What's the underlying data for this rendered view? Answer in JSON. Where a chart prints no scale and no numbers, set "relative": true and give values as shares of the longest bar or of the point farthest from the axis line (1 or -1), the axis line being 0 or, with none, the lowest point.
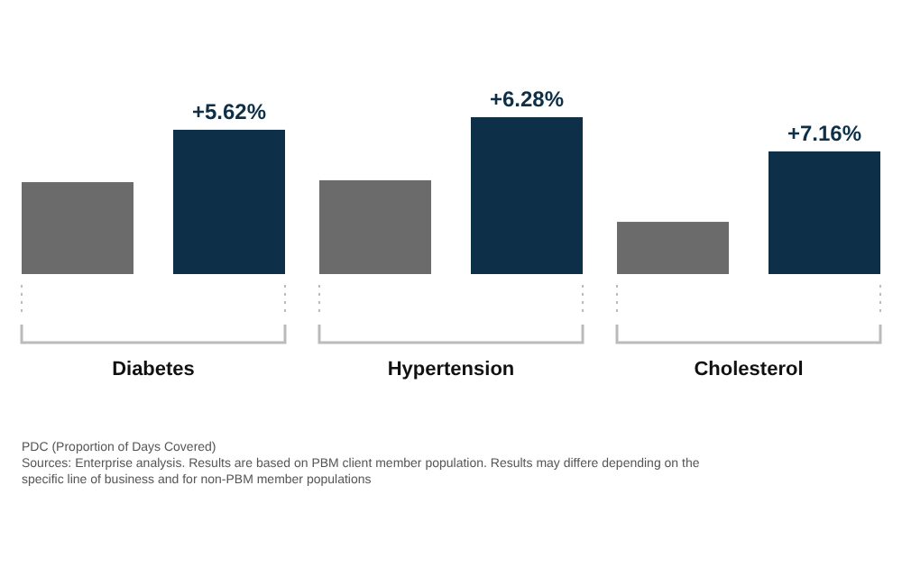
{
  "chart_data": {
    "type": "bar",
    "relative": true,
    "categories": [
      "Diabetes",
      "Hypertension",
      "Cholesterol"
    ],
    "series": [
      {
        "color": "#6b6b6b",
        "values": [
          0.586,
          0.598,
          0.333
        ]
      },
      {
        "color": "#0d3048",
        "values": [
          0.92,
          1,
          0.782
        ]
      }
    ],
    "annotations": [
      "+5.62%",
      "+6.28%",
      "+7.16%",
      "PDC (Proportion of Days Covered)",
      "Sources: Enterprise analysis. Results are based on PBM client member population. Results may differe depending on the specific line of business and for non-PBM member populations"
    ]
  }
}
